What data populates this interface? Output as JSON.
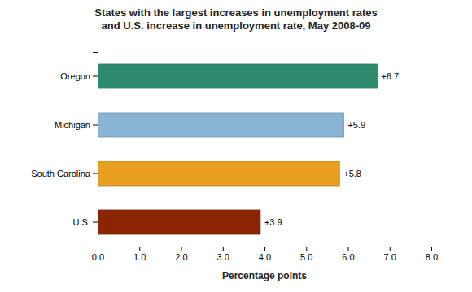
{
  "chart_data": {
    "type": "bar",
    "orientation": "horizontal",
    "title": "States with the largest increases in unemployment rates\nand U.S. increase in unemployment rate, May 2008-09",
    "categories": [
      "Oregon",
      "Michigan",
      "South Carolina",
      "U.S."
    ],
    "values": [
      6.7,
      5.9,
      5.8,
      3.9
    ],
    "colors": [
      "#2e8b6e",
      "#8ab4d4",
      "#e8a020",
      "#8b2500"
    ],
    "data_labels": true,
    "value_labels": [
      "+6.7",
      "+5.9",
      "+5.8",
      "+3.9"
    ],
    "xlabel": "Percentage points",
    "xlim": [
      0,
      8.0
    ],
    "xticks": [
      {
        "value": 0.0,
        "label": "0.0"
      },
      {
        "value": 1.0,
        "label": "1.0"
      },
      {
        "value": 2.0,
        "label": "2.0"
      },
      {
        "value": 3.0,
        "label": "3.0"
      },
      {
        "value": 4.0,
        "label": "4.0"
      },
      {
        "value": 5.0,
        "label": "5.0"
      },
      {
        "value": 6.0,
        "label": "6.0"
      },
      {
        "value": 7.0,
        "label": "7.0"
      },
      {
        "value": 8.0,
        "label": "8.0"
      }
    ],
    "grid": false
  }
}
